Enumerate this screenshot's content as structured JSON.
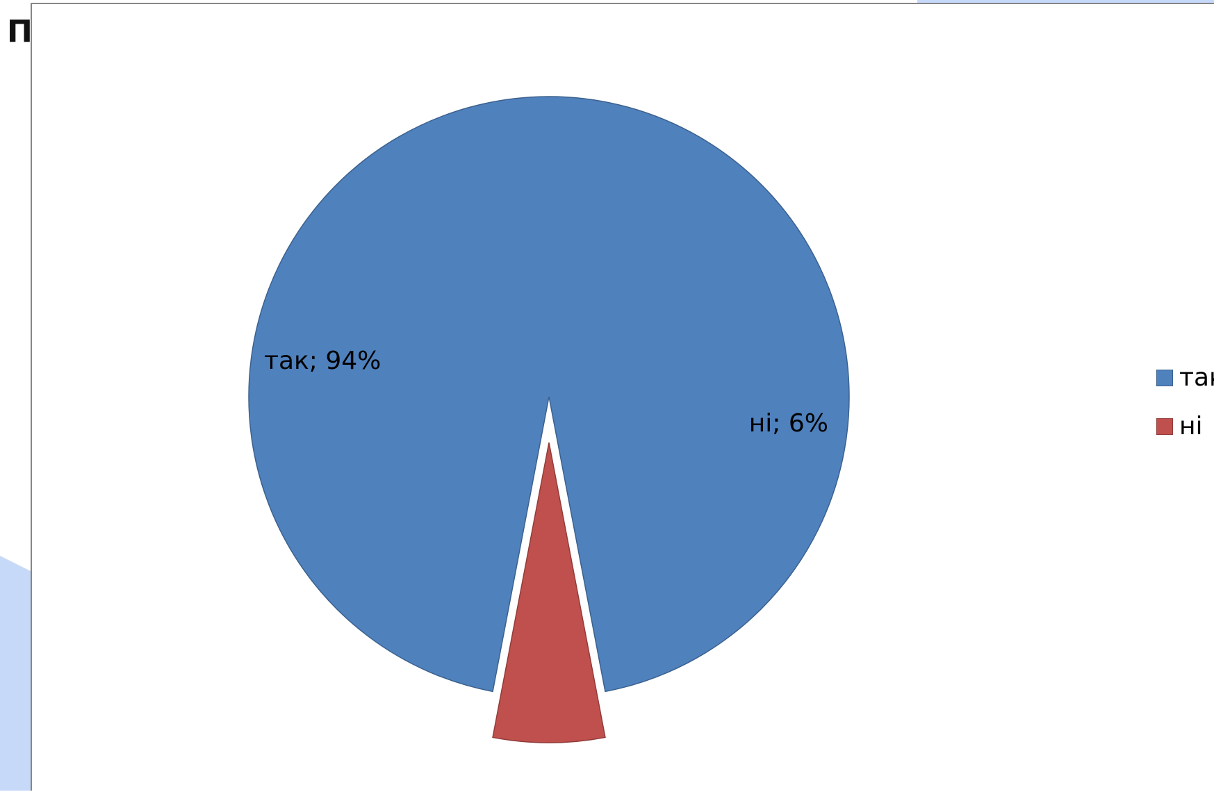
{
  "slide": {
    "title_fragment": "П"
  },
  "chart_data": {
    "type": "pie",
    "title": "",
    "labels": [
      "так",
      "ні"
    ],
    "values": [
      94,
      6
    ],
    "unit": "%",
    "data_labels": [
      "так; 94%",
      "ні; 6%"
    ],
    "colors": [
      "#4F81BD",
      "#C0504D"
    ],
    "exploded": [
      false,
      true
    ],
    "legend_position": "right"
  },
  "theme": {
    "background_accent": "#C6D9F8"
  }
}
